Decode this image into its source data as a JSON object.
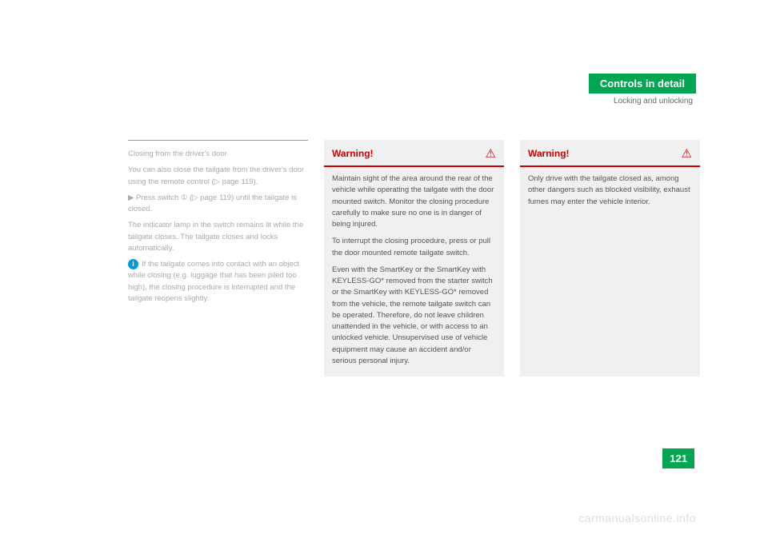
{
  "header": {
    "title": "Controls in detail",
    "subtitle": "Locking and unlocking"
  },
  "leftColumn": {
    "p1": "Closing from the driver's door",
    "p2": "You can also close the tailgate from the driver's door using the remote control (▷ page 119).",
    "p3": "▶ Press switch ① (▷ page 119) until the tailgate is closed.",
    "p4": "The indicator lamp in the switch remains lit while the tailgate closes. The tailgate closes and locks automatically.",
    "info": "If the tailgate comes into contact with an object while closing (e.g. luggage that has been piled too high), the closing procedure is interrupted and the tailgate reopens slightly."
  },
  "warning1": {
    "title": "Warning!",
    "p1": "Maintain sight of the area around the rear of the vehicle while operating the tailgate with the door mounted switch. Monitor the closing procedure carefully to make sure no one is in danger of being injured.",
    "p2": "To interrupt the closing procedure, press or pull the door mounted remote tailgate switch.",
    "p3": "Even with the SmartKey or the SmartKey with KEYLESS-GO* removed from the starter switch or the SmartKey with KEYLESS-GO* removed from the vehicle, the remote tailgate switch can be operated. Therefore, do not leave children unattended in the vehicle, or with access to an unlocked vehicle. Unsupervised use of vehicle equipment may cause an accident and/or serious personal injury."
  },
  "warning2": {
    "title": "Warning!",
    "p1": "Only drive with the tailgate closed as, among other dangers such as blocked visibility, exhaust fumes may enter the vehicle interior."
  },
  "pageNumber": "121",
  "watermark": "carmanualsonline.info"
}
